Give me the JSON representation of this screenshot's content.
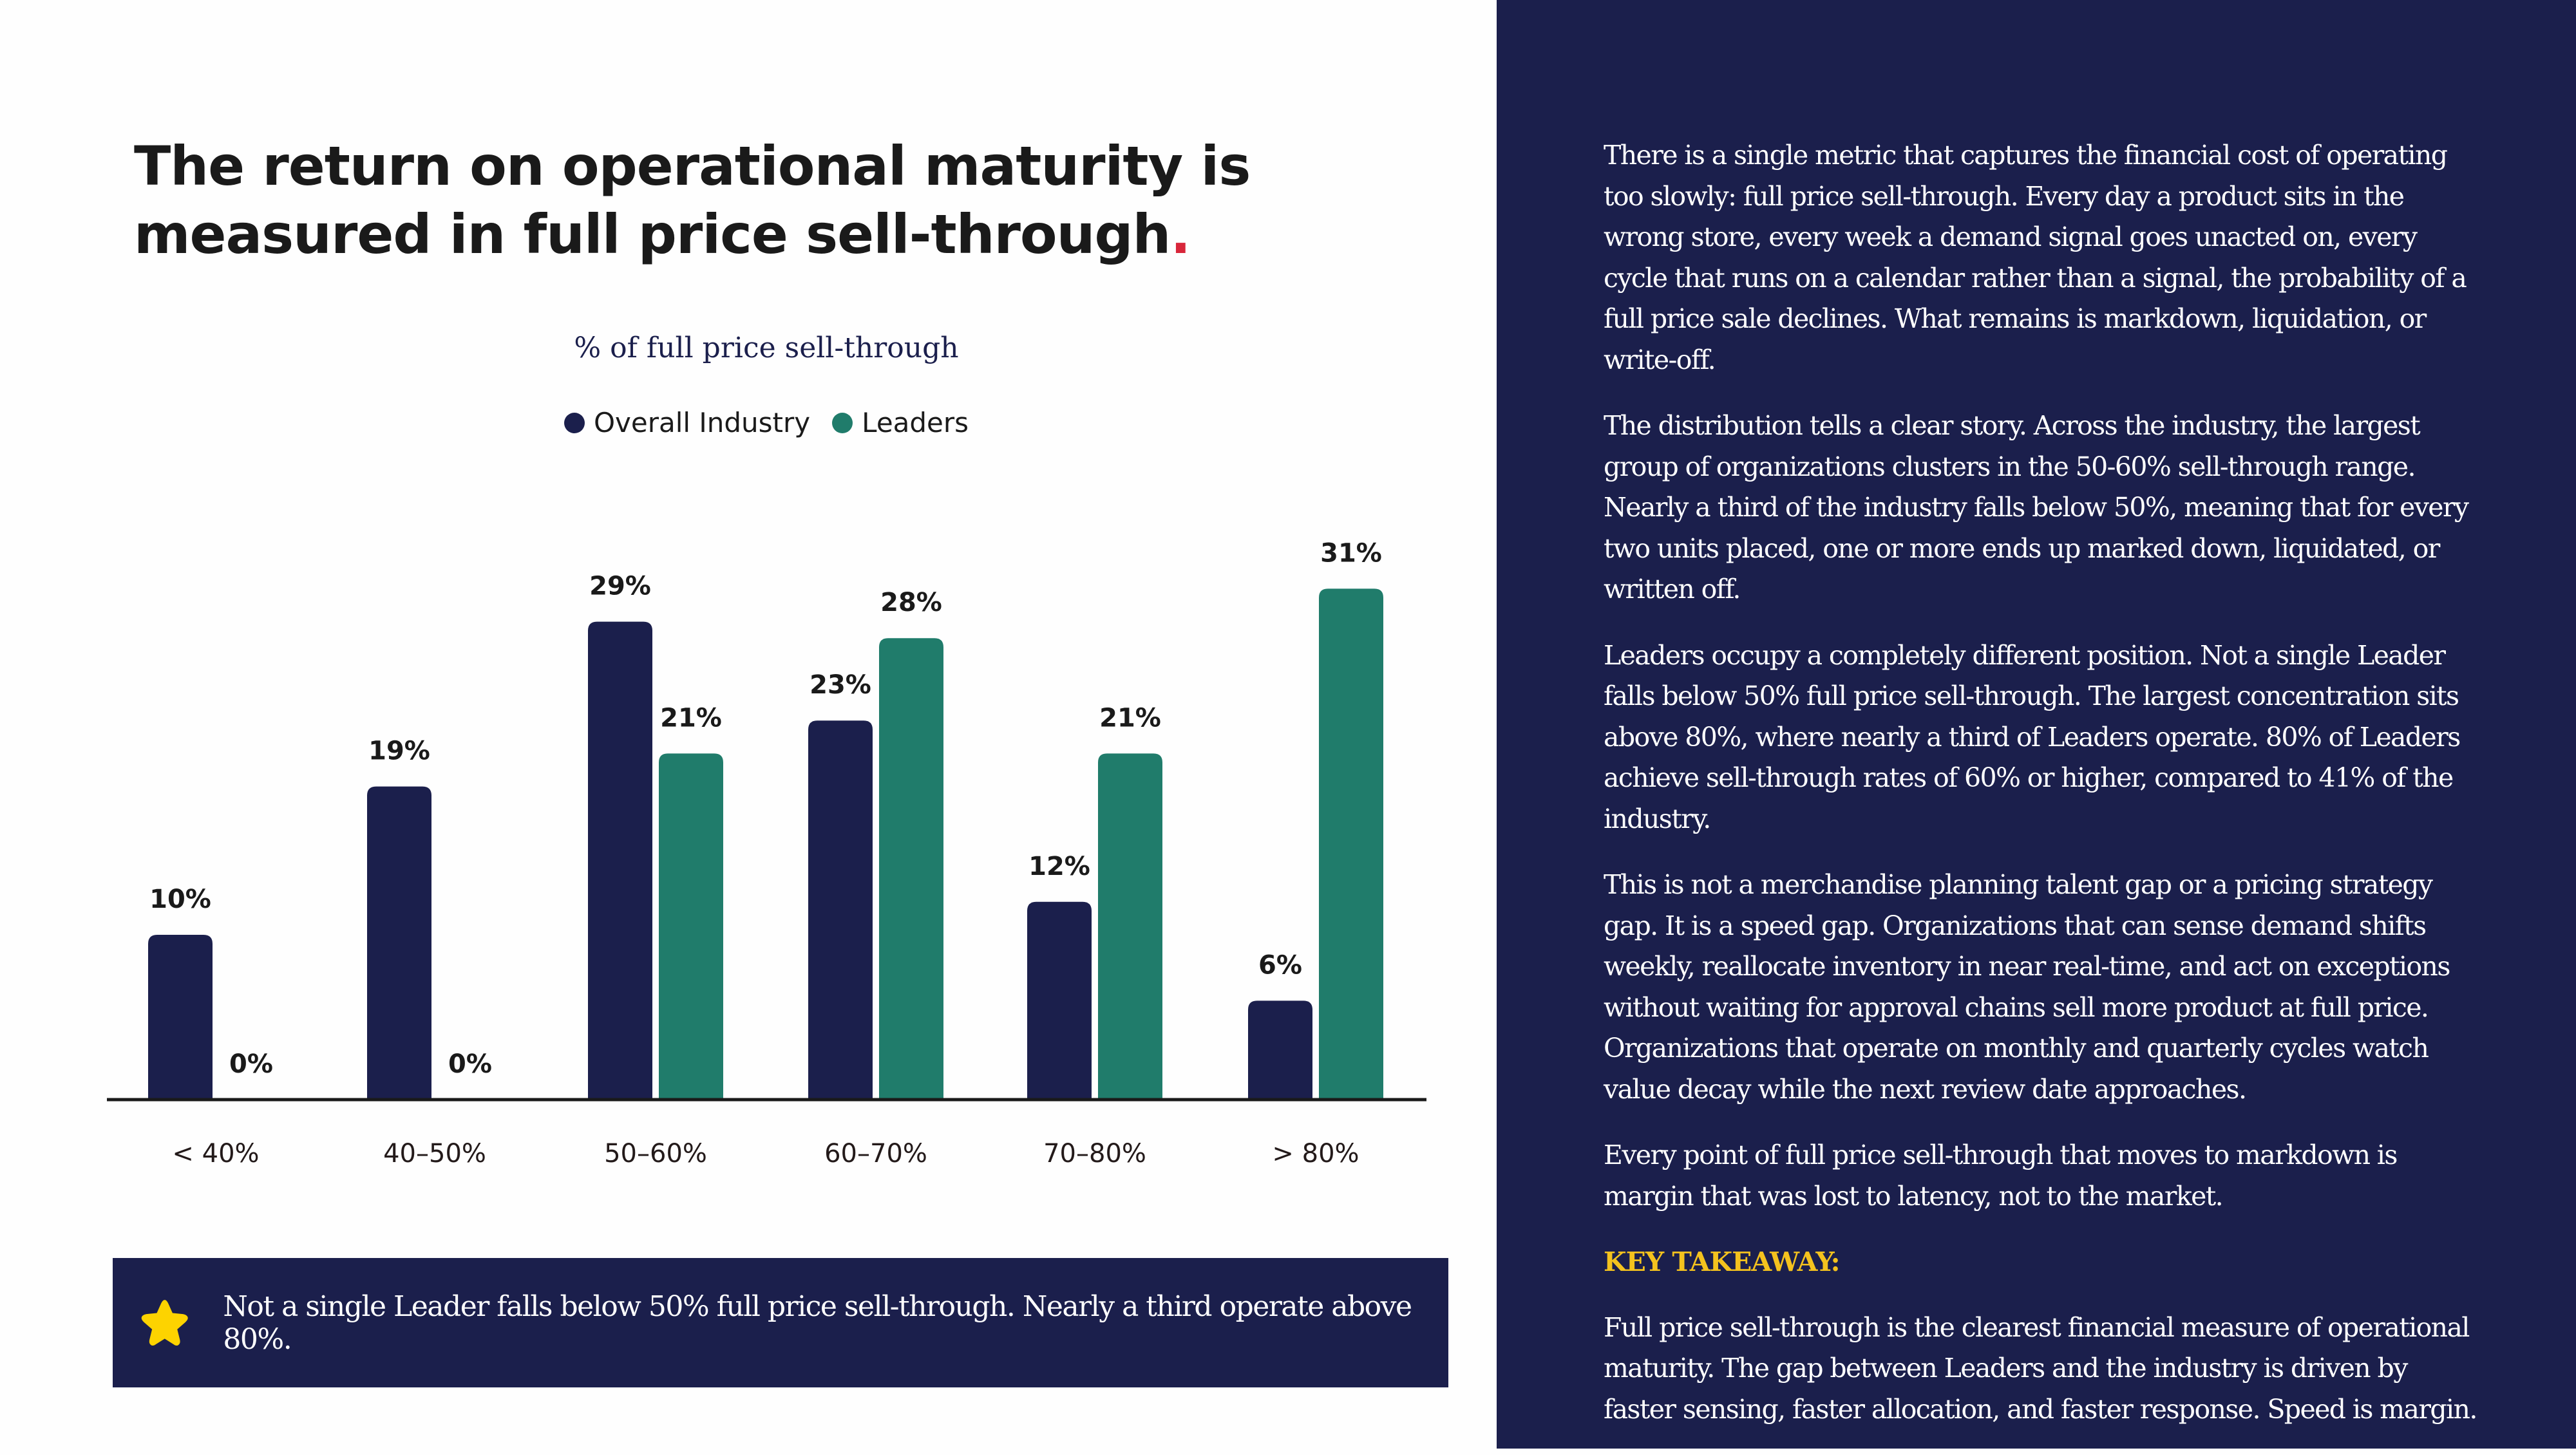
{
  "page": {
    "title_line1": "The return on operational maturity is",
    "title_line2": "measured in full price sell-through",
    "title_dot": ".",
    "colors": {
      "industry": "#1b1f4c",
      "leaders": "#207c6b",
      "accent_dot": "#d8263a",
      "panel_bg": "#1b1f4c",
      "takeaway": "#f4c21e",
      "star": "#fdd300"
    }
  },
  "chart_data": {
    "type": "bar",
    "title": "% of full price sell-through",
    "xlabel": "",
    "ylabel": "",
    "ylim": [
      0,
      33
    ],
    "grid": false,
    "legend_position": "top-center",
    "categories": [
      "< 40%",
      "40–50%",
      "50–60%",
      "60–70%",
      "70–80%",
      "> 80%"
    ],
    "series": [
      {
        "name": "Overall Industry",
        "color": "#1b1f4c",
        "values": [
          10,
          19,
          29,
          23,
          12,
          6
        ],
        "labels": [
          "10%",
          "19%",
          "29%",
          "23%",
          "12%",
          "6%"
        ]
      },
      {
        "name": "Leaders",
        "color": "#207c6b",
        "values": [
          0,
          0,
          21,
          28,
          21,
          31
        ],
        "labels": [
          "0%",
          "0%",
          "21%",
          "28%",
          "21%",
          "31%"
        ]
      }
    ]
  },
  "callout": {
    "icon": "star-icon",
    "text": "Not a single Leader falls below 50% full price sell-through. Nearly a third operate above 80%."
  },
  "panel": {
    "paragraphs": [
      "There is a single metric that captures the financial cost of operating too slowly: full price sell-through. Every day a product sits in the wrong store, every week a demand signal goes unacted on, every cycle that runs on a calendar rather than a signal, the probability of a full price sale declines. What remains is markdown, liquidation, or write-off.",
      "The distribution tells a clear story. Across the industry, the largest group of organizations clusters in the 50-60% sell-through range. Nearly a third of the industry falls below 50%, meaning that for every two units placed, one or more ends up marked down, liquidated, or written off.",
      "Leaders occupy a completely different position. Not a single Leader falls below 50% full price sell-through. The largest concentration sits above 80%, where nearly a third of Leaders operate. 80% of Leaders achieve sell-through rates of 60% or higher, compared to 41% of the industry.",
      "This is not a merchandise planning talent gap or a pricing strategy gap. It is a speed gap. Organizations that can sense demand shifts weekly, reallocate inventory in near real-time, and act on exceptions without waiting for approval chains sell more product at full price. Organizations that operate on monthly and quarterly cycles watch value decay while the next review date approaches.",
      "Every point of full price sell-through that moves to markdown is margin that was lost to latency, not to the market."
    ],
    "takeaway_heading": "KEY TAKEAWAY:",
    "takeaway_text": "Full price sell-through is the clearest financial measure of operational maturity. The gap between Leaders and the industry is driven by faster sensing, faster allocation, and faster response. Speed is margin."
  }
}
